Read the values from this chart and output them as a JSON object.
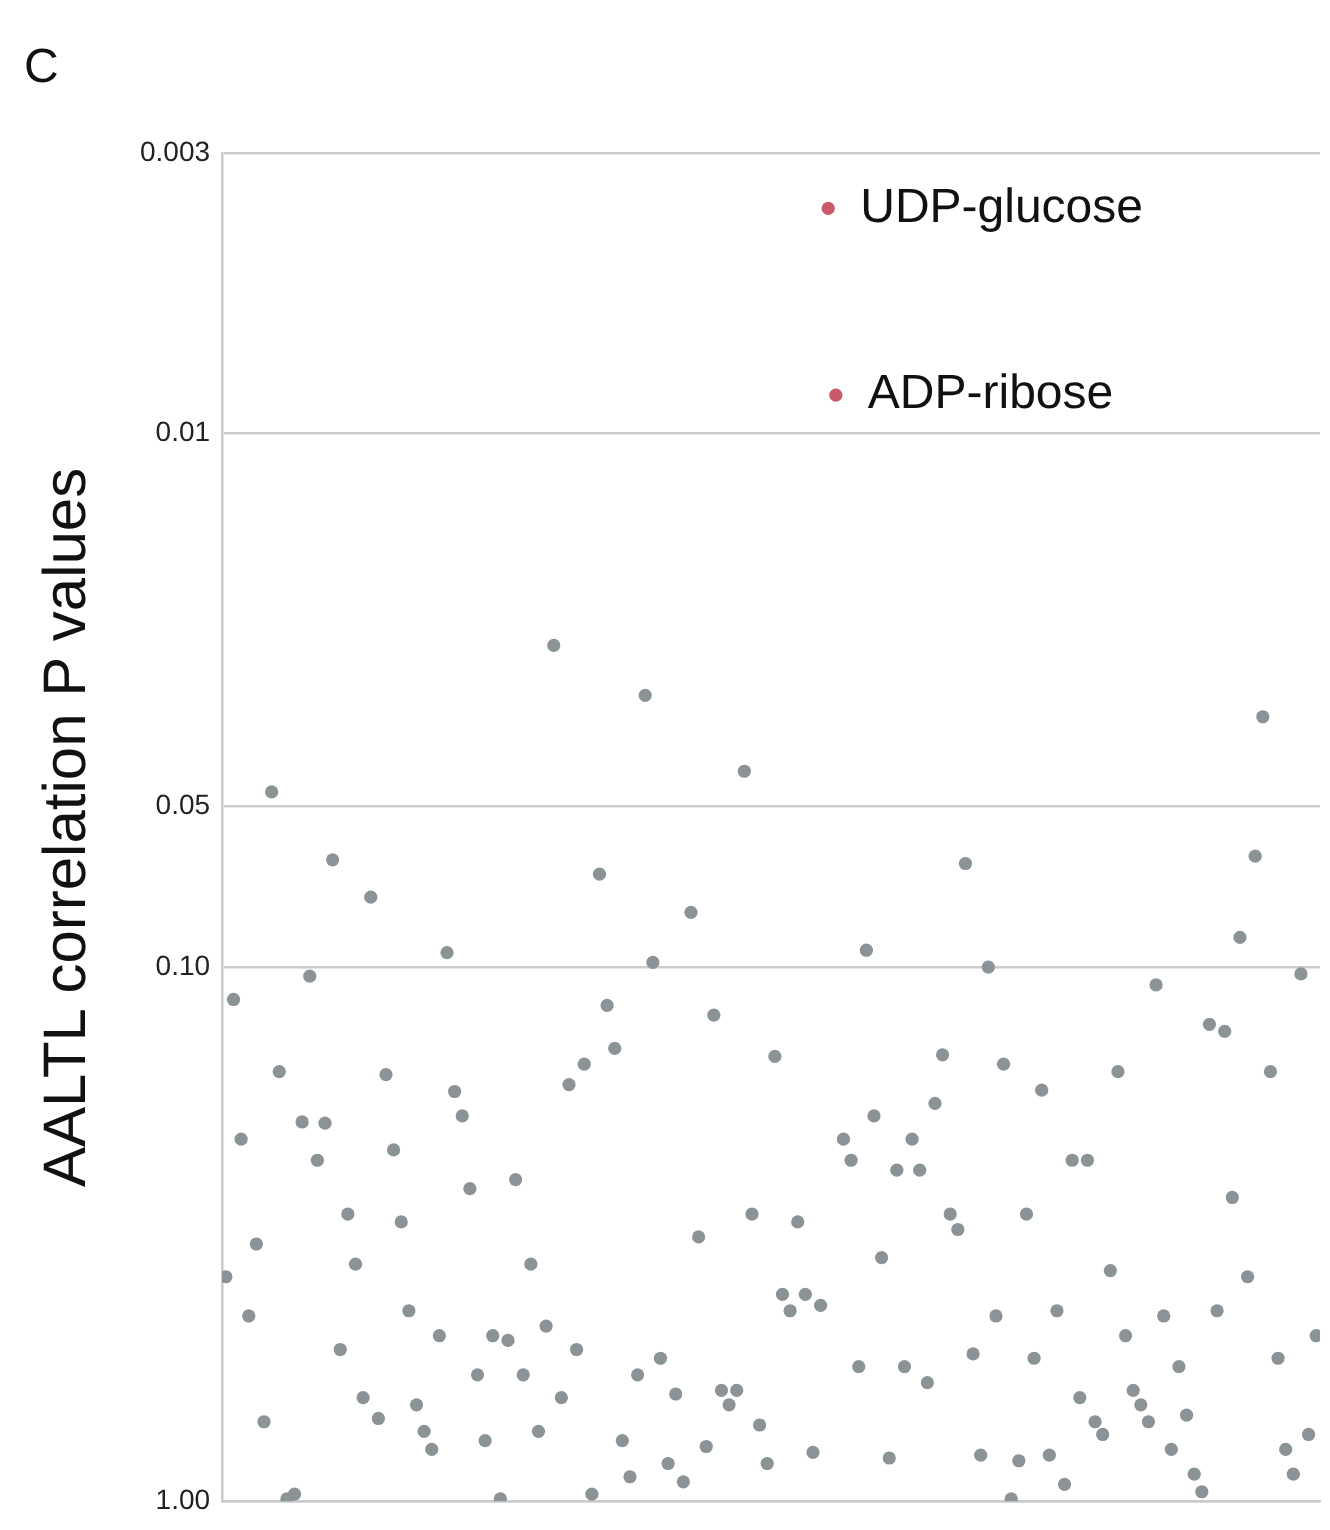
{
  "chart_data": {
    "type": "scatter",
    "title": "C",
    "ylabel": "AALTL correlation P values",
    "categories": [
      null,
      null,
      null,
      null,
      null,
      null,
      null,
      null,
      null,
      null,
      null,
      null,
      null,
      null,
      null,
      null,
      null,
      null,
      null,
      null,
      null,
      null,
      null,
      null,
      null,
      null,
      null,
      null,
      null,
      null,
      null,
      null,
      null,
      null,
      null,
      null,
      null,
      null,
      null,
      null,
      null,
      null,
      null,
      null,
      null,
      null,
      null,
      null,
      null,
      null,
      null,
      null,
      null,
      null,
      null,
      null,
      null,
      null,
      null,
      null,
      null,
      null,
      null,
      null,
      null,
      null,
      null,
      null,
      null,
      null,
      null,
      null,
      null,
      null,
      null,
      null,
      null,
      null,
      null,
      null,
      null,
      null,
      null,
      null,
      null,
      null,
      null,
      null,
      null,
      null,
      null,
      null,
      null,
      null,
      null,
      null,
      null,
      null,
      null,
      null,
      null,
      null,
      null,
      null,
      null,
      null,
      null,
      null,
      null,
      null,
      null,
      null,
      null,
      null,
      null,
      null,
      null,
      null,
      null,
      null,
      null,
      null,
      null,
      null,
      null,
      null,
      null,
      null,
      null,
      null,
      null,
      null,
      null,
      null,
      null,
      null,
      null,
      null,
      null,
      null,
      null,
      null,
      null,
      null
    ],
    "ylim": [
      1,
      0.003
    ],
    "log": "y",
    "grid": "y",
    "tick_labels": "y",
    "marker": "circle",
    "yticks": [
      0.003,
      0.01,
      0.05,
      {
        "value": 0.1,
        "label": "0.10"
      },
      {
        "value": 1,
        "label": "1.00"
      }
    ],
    "series": [
      {
        "color": "#8c9396",
        "values": [
          0.38,
          0.115,
          0.21,
          0.45,
          0.33,
          0.71,
          0.047,
          0.157,
          0.99,
          0.97,
          0.195,
          0.104,
          0.23,
          0.196,
          0.063,
          0.52,
          0.29,
          0.36,
          0.64,
          0.074,
          0.7,
          0.159,
          0.22,
          0.3,
          0.44,
          0.66,
          0.74,
          0.8,
          0.49,
          0.094,
          0.171,
          0.19,
          0.26,
          0.58,
          0.77,
          0.49,
          0.99,
          0.5,
          0.25,
          0.58,
          0.36,
          0.74,
          0.47,
          0.025,
          0.64,
          0.166,
          0.52,
          0.152,
          0.97,
          0.067,
          0.118,
          0.142,
          0.77,
          0.9,
          0.58,
          0.031,
          0.098,
          0.54,
          0.85,
          0.63,
          0.92,
          0.079,
          0.32,
          0.79,
          0.123,
          0.62,
          0.66,
          0.62,
          0.043,
          0.29,
          0.72,
          0.85,
          0.147,
          0.41,
          0.44,
          0.3,
          0.41,
          0.81,
          0.43,
          null,
          null,
          0.21,
          0.23,
          0.56,
          0.093,
          0.19,
          0.35,
          0.83,
          0.24,
          0.56,
          0.21,
          0.24,
          0.6,
          0.18,
          0.146,
          0.29,
          0.31,
          0.064,
          0.53,
          0.82,
          0.1,
          0.45,
          0.152,
          0.99,
          0.84,
          0.29,
          0.54,
          0.17,
          0.82,
          0.44,
          0.93,
          0.23,
          0.64,
          0.23,
          0.71,
          0.75,
          0.37,
          0.157,
          0.49,
          0.62,
          0.66,
          0.71,
          0.108,
          0.45,
          0.8,
          0.56,
          0.69,
          0.89,
          0.96,
          0.128,
          0.44,
          0.132,
          0.27,
          0.088,
          0.38,
          0.062,
          0.034,
          0.157,
          0.54,
          0.8,
          0.89,
          0.103,
          0.75,
          0.49
        ]
      },
      {
        "color": "#c85a6a",
        "values": [
          null,
          null,
          null,
          null,
          null,
          null,
          null,
          null,
          null,
          null,
          null,
          null,
          null,
          null,
          null,
          null,
          null,
          null,
          null,
          null,
          null,
          null,
          null,
          null,
          null,
          null,
          null,
          null,
          null,
          null,
          null,
          null,
          null,
          null,
          null,
          null,
          null,
          null,
          null,
          null,
          null,
          null,
          null,
          null,
          null,
          null,
          null,
          null,
          null,
          null,
          null,
          null,
          null,
          null,
          null,
          null,
          null,
          null,
          null,
          null,
          null,
          null,
          null,
          null,
          null,
          null,
          null,
          null,
          null,
          null,
          null,
          null,
          null,
          null,
          null,
          null,
          null,
          null,
          null,
          0.0038,
          0.0085,
          null,
          null,
          null,
          null,
          null,
          null,
          null,
          null,
          null,
          null,
          null,
          null,
          null,
          null,
          null,
          null,
          null,
          null,
          null,
          null,
          null,
          null,
          null,
          null,
          null,
          null,
          null,
          null,
          null,
          null,
          null,
          null,
          null,
          null,
          null,
          null,
          null,
          null,
          null,
          null,
          null,
          null,
          null,
          null,
          null,
          null,
          null,
          null,
          null,
          null,
          null,
          null,
          null,
          null,
          null,
          null,
          null,
          null,
          null,
          null,
          null,
          null,
          null
        ]
      }
    ],
    "annotations": [
      "UDP-glucose",
      "ADP-ribose"
    ]
  }
}
